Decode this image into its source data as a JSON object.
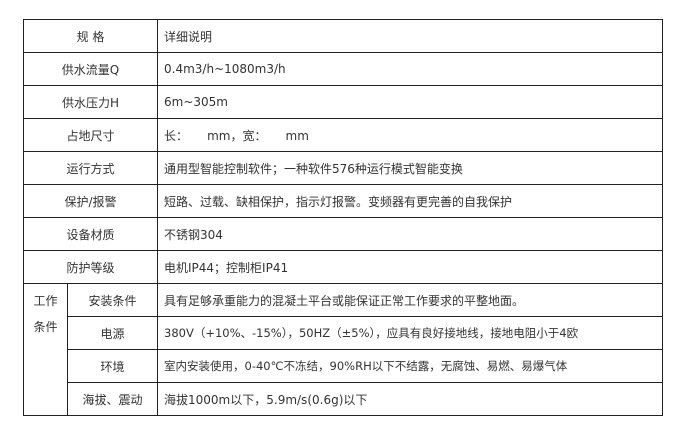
{
  "header": {
    "spec": "规 格",
    "detail": "详细说明"
  },
  "rows": [
    {
      "label": "供水流量Q",
      "value": "0.4m3/h~1080m3/h"
    },
    {
      "label": "供水压力H",
      "value": "6m~305m"
    },
    {
      "label": "占地尺寸",
      "value": "长：     mm，宽：     mm"
    },
    {
      "label": "运行方式",
      "value": "通用型智能控制软件；一种软件576种运行模式智能变换"
    },
    {
      "label": "保护/报警",
      "value": "短路、过载、缺相保护，指示灯报警。变频器有更完善的自我保护"
    },
    {
      "label": "设备材质",
      "value": "不锈钢304"
    },
    {
      "label": "防护等级",
      "value": "电机IP44；控制柜IP41"
    }
  ],
  "working": {
    "group_line1": "工作",
    "group_line2": "条件",
    "rows": [
      {
        "label": "安装条件",
        "value": "具有足够承重能力的混凝土平台或能保证正常工作要求的平整地面。"
      },
      {
        "label": "电源",
        "value": "380V（+10%、-15%），50HZ（±5%），应具有良好接地线，接地电阻小于4欧"
      },
      {
        "label": "环境",
        "value": "室内安装使用，0-40℃不冻结，90%RH以下不结露，无腐蚀、易燃、易爆气体"
      },
      {
        "label": "海拔、震动",
        "value": "海拔1000m以下，5.9m/s(0.6g)以下"
      }
    ]
  }
}
